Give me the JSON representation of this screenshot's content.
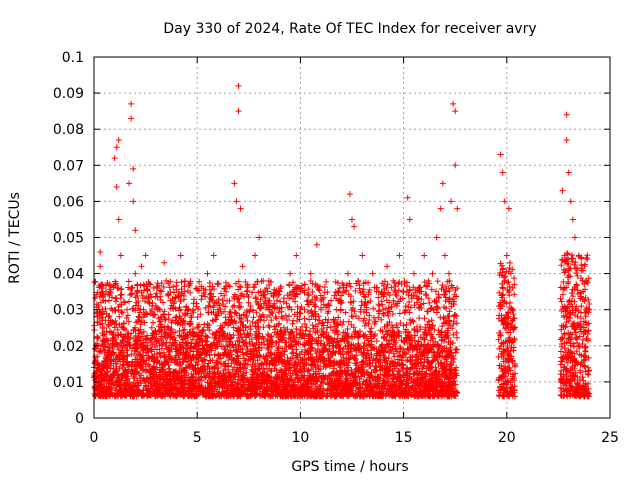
{
  "chart_data": {
    "type": "scatter",
    "title": "Day 330 of 2024, Rate Of TEC Index for receiver avry",
    "xlabel": "GPS time / hours",
    "ylabel": "ROTI / TECUs",
    "xlim": [
      0,
      25
    ],
    "ylim": [
      0,
      0.1
    ],
    "xticks": [
      "0",
      "5",
      "10",
      "15",
      "20",
      "25"
    ],
    "yticks": [
      "0",
      "0.01",
      "0.02",
      "0.03",
      "0.04",
      "0.05",
      "0.06",
      "0.07",
      "0.08",
      "0.09",
      "0.1"
    ],
    "grid": true,
    "marker": "plus",
    "color": "#ff0000",
    "series": [
      {
        "points": [
          [
            0.1,
            0.012
          ],
          [
            0.2,
            0.02
          ],
          [
            0.3,
            0.042
          ],
          [
            0.3,
            0.046
          ],
          [
            0.4,
            0.035
          ],
          [
            0.5,
            0.018
          ],
          [
            0.6,
            0.014
          ],
          [
            0.7,
            0.028
          ],
          [
            0.8,
            0.016
          ],
          [
            0.9,
            0.022
          ],
          [
            1.0,
            0.072
          ],
          [
            1.0,
            0.03
          ],
          [
            1.1,
            0.064
          ],
          [
            1.1,
            0.075
          ],
          [
            1.2,
            0.077
          ],
          [
            1.2,
            0.055
          ],
          [
            1.3,
            0.045
          ],
          [
            1.4,
            0.025
          ],
          [
            1.5,
            0.02
          ],
          [
            1.6,
            0.03
          ],
          [
            1.7,
            0.065
          ],
          [
            1.8,
            0.087
          ],
          [
            1.8,
            0.083
          ],
          [
            1.9,
            0.069
          ],
          [
            1.9,
            0.06
          ],
          [
            2.0,
            0.052
          ],
          [
            2.0,
            0.04
          ],
          [
            2.1,
            0.035
          ],
          [
            2.2,
            0.028
          ],
          [
            2.3,
            0.042
          ],
          [
            2.4,
            0.03
          ],
          [
            2.5,
            0.045
          ],
          [
            2.6,
            0.02
          ],
          [
            2.7,
            0.032
          ],
          [
            2.8,
            0.025
          ],
          [
            2.9,
            0.036
          ],
          [
            3.0,
            0.022
          ],
          [
            3.2,
            0.03
          ],
          [
            3.4,
            0.043
          ],
          [
            3.5,
            0.038
          ],
          [
            3.6,
            0.025
          ],
          [
            3.8,
            0.033
          ],
          [
            4.0,
            0.028
          ],
          [
            4.2,
            0.045
          ],
          [
            4.4,
            0.035
          ],
          [
            4.5,
            0.02
          ],
          [
            4.8,
            0.03
          ],
          [
            5.0,
            0.025
          ],
          [
            5.2,
            0.022
          ],
          [
            5.5,
            0.04
          ],
          [
            5.8,
            0.045
          ],
          [
            6.0,
            0.03
          ],
          [
            6.2,
            0.025
          ],
          [
            6.4,
            0.035
          ],
          [
            6.6,
            0.028
          ],
          [
            6.8,
            0.065
          ],
          [
            6.9,
            0.06
          ],
          [
            7.0,
            0.092
          ],
          [
            7.0,
            0.085
          ],
          [
            7.1,
            0.058
          ],
          [
            7.2,
            0.042
          ],
          [
            7.4,
            0.035
          ],
          [
            7.6,
            0.03
          ],
          [
            7.8,
            0.045
          ],
          [
            8.0,
            0.05
          ],
          [
            8.2,
            0.038
          ],
          [
            8.5,
            0.03
          ],
          [
            8.8,
            0.028
          ],
          [
            9.0,
            0.035
          ],
          [
            9.2,
            0.025
          ],
          [
            9.5,
            0.04
          ],
          [
            9.8,
            0.045
          ],
          [
            10.0,
            0.035
          ],
          [
            10.2,
            0.03
          ],
          [
            10.5,
            0.04
          ],
          [
            10.8,
            0.048
          ],
          [
            11.0,
            0.03
          ],
          [
            11.3,
            0.025
          ],
          [
            11.6,
            0.02
          ],
          [
            12.0,
            0.032
          ],
          [
            12.3,
            0.04
          ],
          [
            12.4,
            0.062
          ],
          [
            12.5,
            0.055
          ],
          [
            12.6,
            0.053
          ],
          [
            12.8,
            0.038
          ],
          [
            13.0,
            0.045
          ],
          [
            13.2,
            0.03
          ],
          [
            13.5,
            0.04
          ],
          [
            13.8,
            0.035
          ],
          [
            14.0,
            0.03
          ],
          [
            14.2,
            0.042
          ],
          [
            14.5,
            0.038
          ],
          [
            14.8,
            0.045
          ],
          [
            15.0,
            0.035
          ],
          [
            15.2,
            0.061
          ],
          [
            15.3,
            0.055
          ],
          [
            15.5,
            0.04
          ],
          [
            15.8,
            0.035
          ],
          [
            16.0,
            0.045
          ],
          [
            16.2,
            0.038
          ],
          [
            16.4,
            0.04
          ],
          [
            16.6,
            0.05
          ],
          [
            16.8,
            0.058
          ],
          [
            16.9,
            0.065
          ],
          [
            17.0,
            0.045
          ],
          [
            17.2,
            0.04
          ],
          [
            17.3,
            0.06
          ],
          [
            17.4,
            0.087
          ],
          [
            17.5,
            0.085
          ],
          [
            17.5,
            0.07
          ],
          [
            17.6,
            0.058
          ],
          [
            19.7,
            0.073
          ],
          [
            19.8,
            0.068
          ],
          [
            19.9,
            0.06
          ],
          [
            20.0,
            0.045
          ],
          [
            20.1,
            0.058
          ],
          [
            20.2,
            0.04
          ],
          [
            20.3,
            0.03
          ],
          [
            20.4,
            0.025
          ],
          [
            22.7,
            0.063
          ],
          [
            22.8,
            0.045
          ],
          [
            22.9,
            0.084
          ],
          [
            22.9,
            0.077
          ],
          [
            23.0,
            0.068
          ],
          [
            23.1,
            0.06
          ],
          [
            23.2,
            0.055
          ],
          [
            23.3,
            0.05
          ],
          [
            23.5,
            0.045
          ],
          [
            23.7,
            0.035
          ],
          [
            23.9,
            0.044
          ],
          [
            24.0,
            0.03
          ]
        ],
        "segments": [
          {
            "range": [
              0.0,
              17.6
            ],
            "low": 0.006,
            "high": 0.024
          },
          {
            "range": [
              19.6,
              20.4
            ],
            "low": 0.006,
            "high": 0.03
          },
          {
            "range": [
              22.6,
              24.0
            ],
            "low": 0.006,
            "high": 0.032
          }
        ]
      }
    ]
  }
}
